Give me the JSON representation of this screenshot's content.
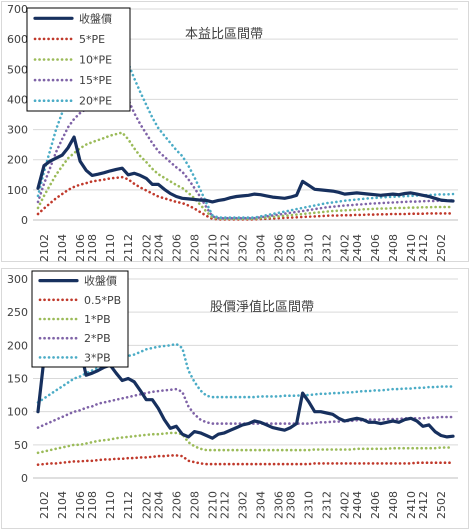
{
  "chart_data": [
    {
      "type": "line",
      "title": "本益比區間帶",
      "xlabel": "",
      "ylabel": "",
      "ylim": [
        0,
        700
      ],
      "yticks": [
        0,
        100,
        200,
        300,
        400,
        500,
        600,
        700
      ],
      "tick_labels": [
        "2102",
        "2104",
        "2106",
        "2108",
        "2110",
        "2112",
        "2202",
        "2204",
        "2206",
        "2208",
        "2210",
        "2212",
        "2302",
        "2304",
        "2306",
        "2308",
        "2310",
        "2312",
        "2402",
        "2404",
        "2406",
        "2408",
        "2410",
        "2412",
        "2502"
      ],
      "grid": "horizontal",
      "legend_position": "top-left",
      "series": [
        {
          "name": "收盤價",
          "color": "#17305e",
          "style": "solid",
          "values": [
            105,
            180,
            195,
            205,
            215,
            240,
            275,
            195,
            165,
            148,
            152,
            157,
            163,
            168,
            172,
            150,
            155,
            148,
            138,
            118,
            118,
            102,
            88,
            78,
            72,
            70,
            68,
            66,
            65,
            60,
            65,
            68,
            74,
            78,
            80,
            82,
            86,
            84,
            80,
            76,
            74,
            72,
            76,
            82,
            128,
            115,
            102,
            100,
            98,
            96,
            92,
            86,
            88,
            90,
            88,
            86,
            84,
            82,
            84,
            86,
            84,
            88,
            90,
            86,
            82,
            78,
            72,
            66,
            64,
            63
          ]
        },
        {
          "name": "5*PE",
          "color": "#c0392b",
          "style": "dotted",
          "values": [
            20,
            38,
            55,
            72,
            86,
            100,
            110,
            117,
            122,
            128,
            131,
            134,
            138,
            140,
            142,
            135,
            120,
            108,
            98,
            88,
            78,
            72,
            66,
            60,
            56,
            48,
            38,
            26,
            14,
            4,
            2,
            2,
            2,
            2,
            2,
            2,
            2,
            3,
            4,
            5,
            6,
            7,
            8,
            9,
            10,
            11,
            12,
            13,
            14,
            15,
            15,
            16,
            16,
            17,
            17,
            18,
            18,
            19,
            19,
            20,
            20,
            20,
            21,
            21,
            21,
            22,
            22,
            22,
            22,
            22
          ]
        },
        {
          "name": "10*PE",
          "color": "#9bbb59",
          "style": "dotted",
          "values": [
            40,
            80,
            115,
            150,
            178,
            205,
            222,
            238,
            250,
            258,
            265,
            272,
            280,
            285,
            290,
            268,
            238,
            212,
            192,
            170,
            152,
            140,
            128,
            116,
            106,
            90,
            72,
            50,
            28,
            8,
            4,
            4,
            4,
            4,
            4,
            4,
            4,
            6,
            8,
            10,
            12,
            14,
            16,
            18,
            20,
            22,
            24,
            26,
            28,
            30,
            31,
            32,
            33,
            34,
            35,
            36,
            37,
            38,
            38,
            39,
            40,
            40,
            41,
            41,
            42,
            42,
            43,
            43,
            43,
            43
          ]
        },
        {
          "name": "15*PE",
          "color": "#7f63a7",
          "style": "dotted",
          "values": [
            60,
            120,
            172,
            225,
            268,
            308,
            335,
            355,
            368,
            378,
            390,
            398,
            410,
            422,
            432,
            400,
            355,
            318,
            286,
            255,
            228,
            210,
            192,
            175,
            160,
            135,
            106,
            76,
            42,
            12,
            6,
            6,
            6,
            6,
            6,
            6,
            6,
            9,
            12,
            15,
            18,
            21,
            24,
            27,
            30,
            33,
            36,
            39,
            42,
            44,
            46,
            48,
            49,
            51,
            52,
            54,
            55,
            56,
            57,
            58,
            59,
            60,
            61,
            61,
            62,
            63,
            63,
            64,
            64,
            65
          ]
        },
        {
          "name": "20*PE",
          "color": "#4bacc6",
          "style": "dotted",
          "values": [
            80,
            160,
            230,
            300,
            355,
            410,
            445,
            470,
            490,
            500,
            510,
            520,
            530,
            545,
            560,
            520,
            470,
            425,
            382,
            340,
            305,
            280,
            256,
            232,
            212,
            180,
            142,
            100,
            56,
            16,
            8,
            8,
            8,
            8,
            8,
            8,
            8,
            12,
            16,
            20,
            24,
            28,
            32,
            36,
            40,
            44,
            48,
            52,
            56,
            58,
            61,
            64,
            66,
            68,
            70,
            72,
            73,
            75,
            76,
            77,
            78,
            79,
            80,
            81,
            82,
            83,
            84,
            85,
            85,
            86
          ]
        }
      ]
    },
    {
      "type": "line",
      "title": "股價淨值比區間帶",
      "xlabel": "",
      "ylabel": "",
      "ylim": [
        0,
        300
      ],
      "yticks": [
        0,
        50,
        100,
        150,
        200,
        250,
        300
      ],
      "tick_labels": [
        "2102",
        "2104",
        "2106",
        "2108",
        "2110",
        "2112",
        "2202",
        "2204",
        "2206",
        "2208",
        "2210",
        "2212",
        "2302",
        "2304",
        "2306",
        "2308",
        "2310",
        "2312",
        "2402",
        "2404",
        "2406",
        "2408",
        "2410",
        "2412",
        "2502"
      ],
      "grid": "horizontal",
      "legend_position": "top-left",
      "series": [
        {
          "name": "收盤價",
          "color": "#17305e",
          "style": "solid",
          "values": [
            100,
            180,
            195,
            205,
            215,
            240,
            275,
            195,
            155,
            158,
            162,
            167,
            170,
            158,
            147,
            150,
            145,
            132,
            118,
            118,
            105,
            88,
            75,
            78,
            66,
            62,
            70,
            68,
            64,
            60,
            66,
            68,
            72,
            76,
            80,
            82,
            86,
            84,
            80,
            76,
            74,
            72,
            76,
            82,
            128,
            115,
            100,
            100,
            98,
            96,
            90,
            86,
            88,
            90,
            88,
            84,
            84,
            82,
            84,
            86,
            84,
            88,
            90,
            86,
            78,
            80,
            70,
            64,
            62,
            63
          ]
        },
        {
          "name": "0.5*PB",
          "color": "#c0392b",
          "style": "dotted",
          "values": [
            20,
            21,
            22,
            22,
            23,
            24,
            25,
            25,
            26,
            26,
            27,
            28,
            28,
            29,
            29,
            30,
            30,
            31,
            31,
            32,
            33,
            33,
            34,
            34,
            33,
            26,
            24,
            22,
            21,
            21,
            21,
            21,
            21,
            21,
            21,
            21,
            21,
            21,
            21,
            21,
            21,
            21,
            21,
            21,
            21,
            21,
            22,
            22,
            22,
            22,
            22,
            22,
            22,
            22,
            22,
            22,
            22,
            22,
            22,
            22,
            22,
            22,
            22,
            23,
            23,
            23,
            23,
            23,
            23,
            23
          ]
        },
        {
          "name": "1*PB",
          "color": "#9bbb59",
          "style": "dotted",
          "values": [
            38,
            40,
            42,
            44,
            46,
            48,
            50,
            50,
            52,
            54,
            56,
            57,
            58,
            60,
            61,
            62,
            63,
            64,
            65,
            66,
            66,
            67,
            68,
            68,
            66,
            54,
            48,
            44,
            42,
            42,
            42,
            42,
            42,
            42,
            42,
            42,
            42,
            42,
            42,
            42,
            42,
            42,
            42,
            42,
            42,
            42,
            43,
            43,
            43,
            43,
            43,
            43,
            43,
            44,
            44,
            44,
            44,
            44,
            44,
            45,
            45,
            45,
            45,
            45,
            45,
            45,
            45,
            46,
            46,
            46
          ]
        },
        {
          "name": "2*PB",
          "color": "#7f63a7",
          "style": "dotted",
          "values": [
            76,
            80,
            84,
            88,
            92,
            96,
            100,
            102,
            106,
            108,
            112,
            114,
            116,
            118,
            120,
            122,
            124,
            126,
            128,
            130,
            131,
            132,
            133,
            134,
            130,
            108,
            96,
            88,
            84,
            82,
            82,
            82,
            82,
            82,
            82,
            82,
            82,
            82,
            82,
            82,
            82,
            82,
            82,
            82,
            82,
            82,
            83,
            84,
            84,
            85,
            85,
            86,
            86,
            87,
            87,
            88,
            88,
            88,
            89,
            89,
            89,
            90,
            90,
            90,
            90,
            91,
            91,
            92,
            92,
            92
          ]
        },
        {
          "name": "3*PB",
          "color": "#4bacc6",
          "style": "dotted",
          "values": [
            114,
            120,
            126,
            132,
            138,
            144,
            150,
            153,
            158,
            162,
            166,
            170,
            174,
            178,
            180,
            184,
            186,
            190,
            194,
            196,
            198,
            199,
            200,
            202,
            196,
            162,
            145,
            132,
            124,
            122,
            122,
            122,
            122,
            122,
            122,
            122,
            122,
            123,
            123,
            123,
            123,
            124,
            124,
            124,
            125,
            125,
            126,
            127,
            127,
            128,
            128,
            129,
            129,
            130,
            131,
            131,
            132,
            132,
            133,
            134,
            134,
            135,
            135,
            136,
            136,
            137,
            137,
            138,
            138,
            138
          ]
        }
      ]
    }
  ]
}
